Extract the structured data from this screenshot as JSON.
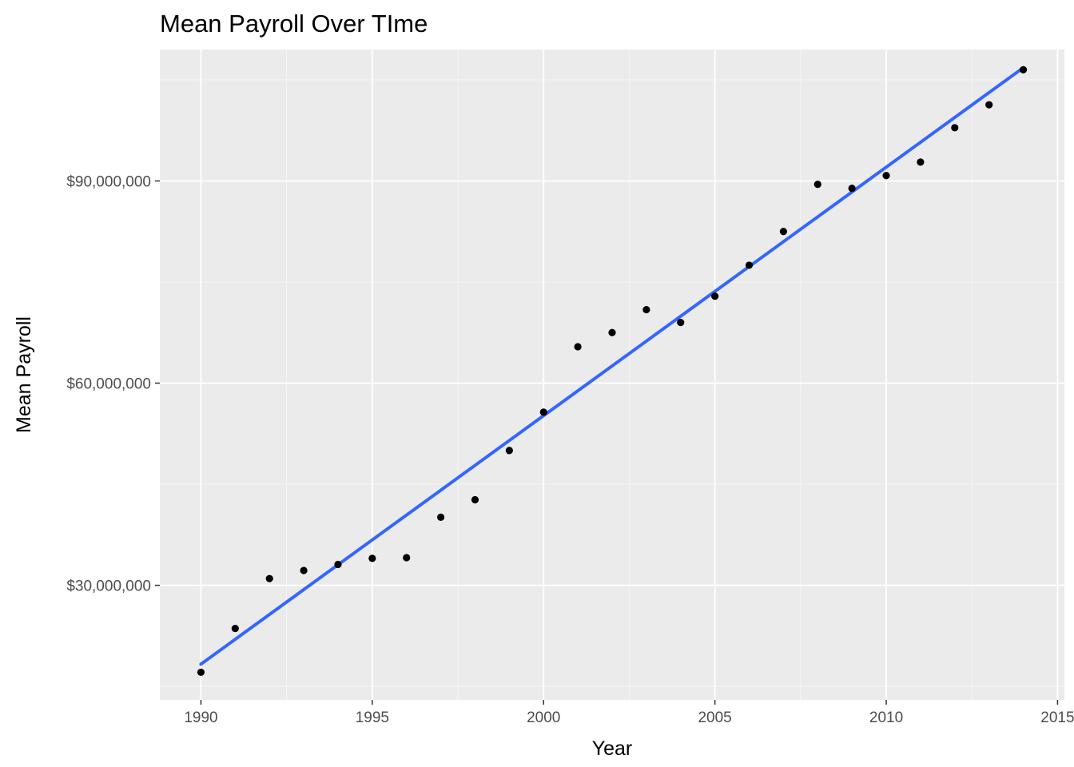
{
  "chart_data": {
    "type": "scatter",
    "title": "Mean Payroll Over TIme",
    "xlabel": "Year",
    "ylabel": "Mean Payroll",
    "xlim": [
      1988.8,
      2015.2
    ],
    "ylim": [
      13000000,
      109500000
    ],
    "x_ticks": [
      1990,
      1995,
      2000,
      2005,
      2010,
      2015
    ],
    "x_tick_labels": [
      "1990",
      "1995",
      "2000",
      "2005",
      "2010",
      "2015"
    ],
    "y_ticks": [
      30000000,
      60000000,
      90000000
    ],
    "y_tick_labels": [
      "$30,000,000",
      "$60,000,000",
      "$90,000,000"
    ],
    "grid": true,
    "series": [
      {
        "type": "scatter",
        "color": "#000000",
        "points": [
          {
            "x": 1990,
            "y": 17100000
          },
          {
            "x": 1991,
            "y": 23600000
          },
          {
            "x": 1992,
            "y": 31000000
          },
          {
            "x": 1993,
            "y": 32200000
          },
          {
            "x": 1994,
            "y": 33100000
          },
          {
            "x": 1995,
            "y": 34000000
          },
          {
            "x": 1996,
            "y": 34100000
          },
          {
            "x": 1997,
            "y": 40100000
          },
          {
            "x": 1998,
            "y": 42700000
          },
          {
            "x": 1999,
            "y": 50000000
          },
          {
            "x": 2000,
            "y": 55700000
          },
          {
            "x": 2001,
            "y": 65400000
          },
          {
            "x": 2002,
            "y": 67500000
          },
          {
            "x": 2003,
            "y": 70900000
          },
          {
            "x": 2004,
            "y": 69000000
          },
          {
            "x": 2005,
            "y": 72900000
          },
          {
            "x": 2006,
            "y": 77500000
          },
          {
            "x": 2007,
            "y": 82500000
          },
          {
            "x": 2008,
            "y": 89500000
          },
          {
            "x": 2009,
            "y": 88900000
          },
          {
            "x": 2010,
            "y": 90800000
          },
          {
            "x": 2011,
            "y": 92800000
          },
          {
            "x": 2012,
            "y": 97900000
          },
          {
            "x": 2013,
            "y": 101300000
          },
          {
            "x": 2014,
            "y": 106500000
          }
        ]
      },
      {
        "type": "line",
        "color": "#3366ff",
        "points": [
          {
            "x": 1990,
            "y": 18300000
          },
          {
            "x": 2014,
            "y": 106800000
          }
        ]
      }
    ]
  }
}
